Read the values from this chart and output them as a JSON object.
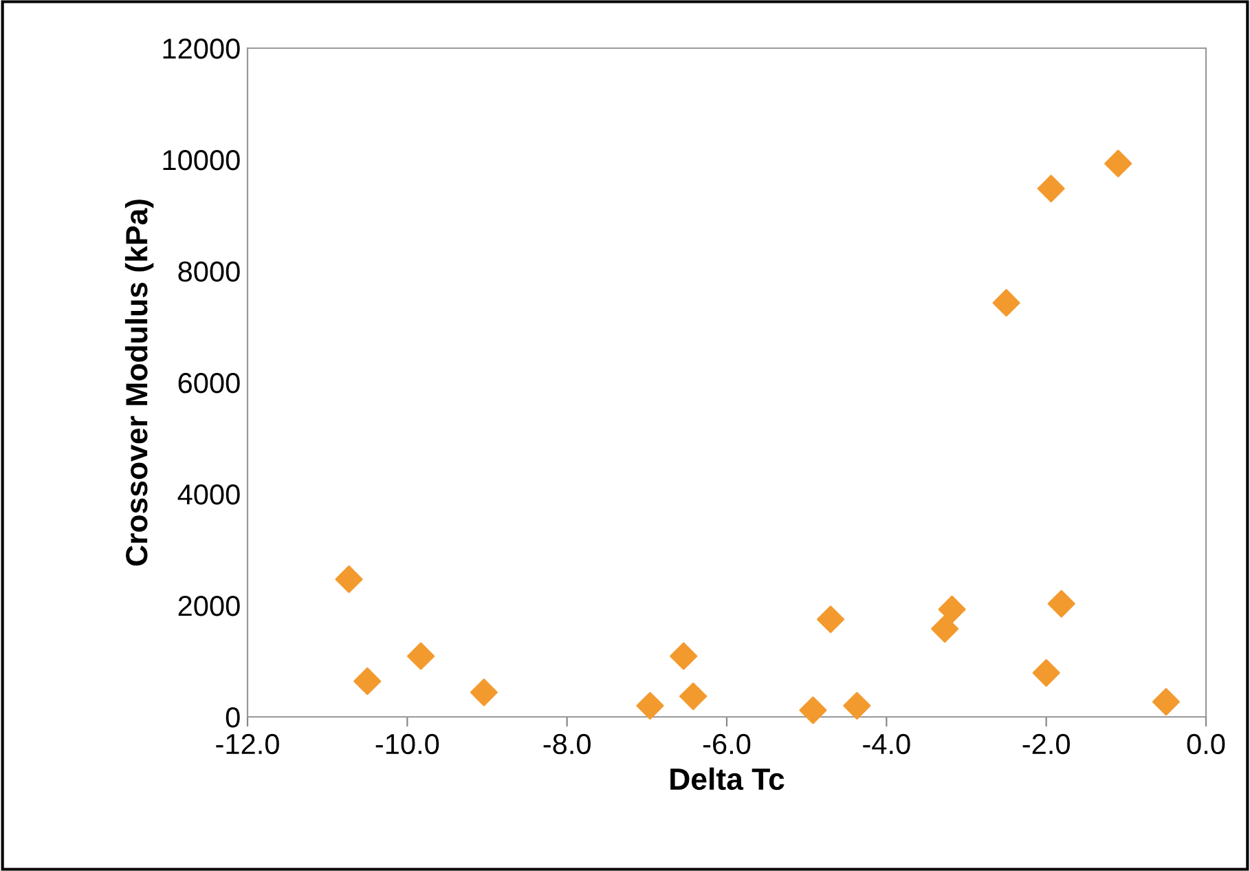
{
  "chart_data": {
    "type": "scatter",
    "xlabel": "Delta Tc",
    "ylabel": "Crossover Modulus (kPa)",
    "x": [
      -10.73,
      -10.5,
      -9.83,
      -9.04,
      -6.96,
      -6.54,
      -6.42,
      -4.92,
      -4.7,
      -4.37,
      -3.27,
      -3.18,
      -2.5,
      -2.0,
      -1.94,
      -1.81,
      -1.1,
      -0.5
    ],
    "series": [
      {
        "color": "#f39a2e",
        "values": [
          2470,
          640,
          1090,
          440,
          200,
          1090,
          370,
          120,
          1750,
          200,
          1580,
          1930,
          7430,
          790,
          9480,
          2030,
          9930,
          270
        ]
      }
    ],
    "xlim": [
      -12,
      0
    ],
    "xticks": [
      {
        "value": -12,
        "label": "-12.0"
      },
      {
        "value": -10,
        "label": "-10.0"
      },
      {
        "value": -8,
        "label": "-8.0"
      },
      {
        "value": -6,
        "label": "-6.0"
      },
      {
        "value": -4,
        "label": "-4.0"
      },
      {
        "value": -2,
        "label": "-2.0"
      },
      {
        "value": 0,
        "label": "0.0"
      }
    ],
    "ylim": [
      0,
      12000
    ],
    "yticks": [
      0,
      2000,
      4000,
      6000,
      8000,
      10000,
      12000
    ],
    "marker": "diamond",
    "grid": false,
    "legend": false
  }
}
